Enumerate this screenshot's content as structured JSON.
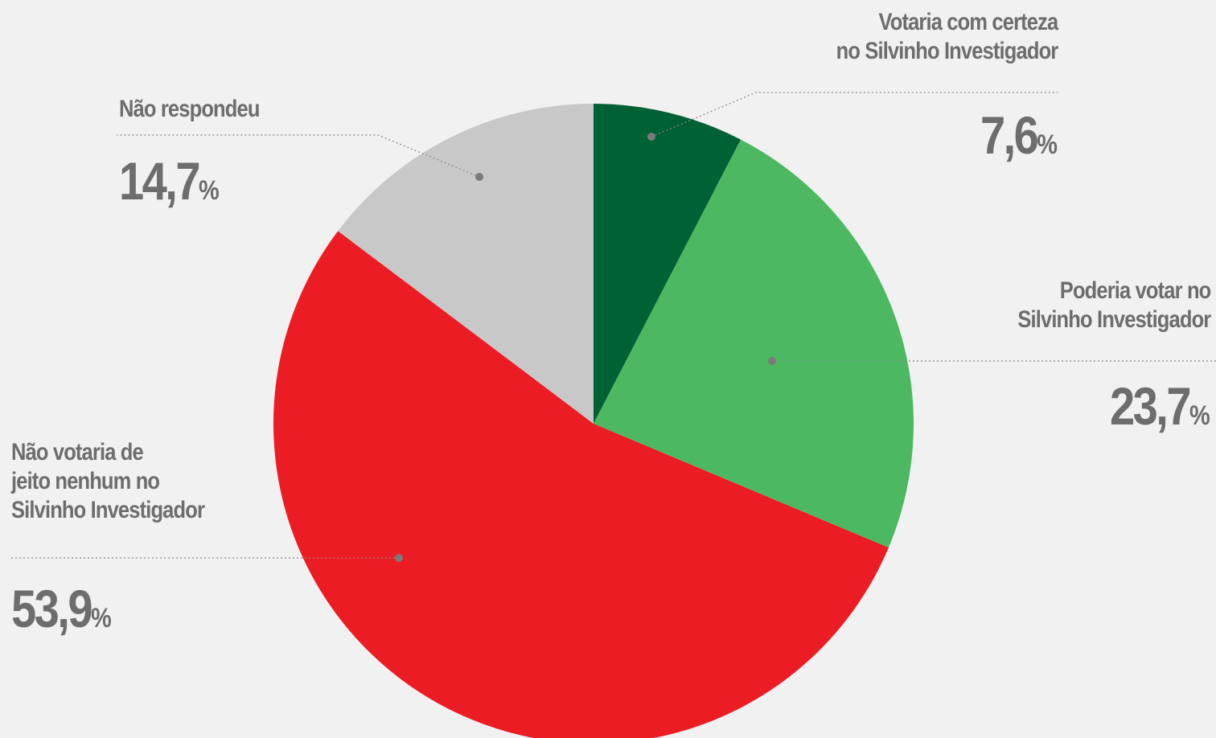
{
  "chart_data": {
    "type": "pie",
    "categories": [
      "Votaria com certeza\nno Silvinho Investigador",
      "Poderia votar no\nSilvinho Investigador",
      "Não votaria de\njeito nenhum no\nSilvinho Investigador",
      "Não respondeu"
    ],
    "values": [
      7.6,
      23.7,
      53.9,
      14.7
    ],
    "value_labels": [
      "7,6%",
      "23,7%",
      "53,9%",
      "14,7%"
    ],
    "colors": [
      "#006134",
      "#4cb962",
      "#ec1c24",
      "#c8c8c8"
    ]
  }
}
